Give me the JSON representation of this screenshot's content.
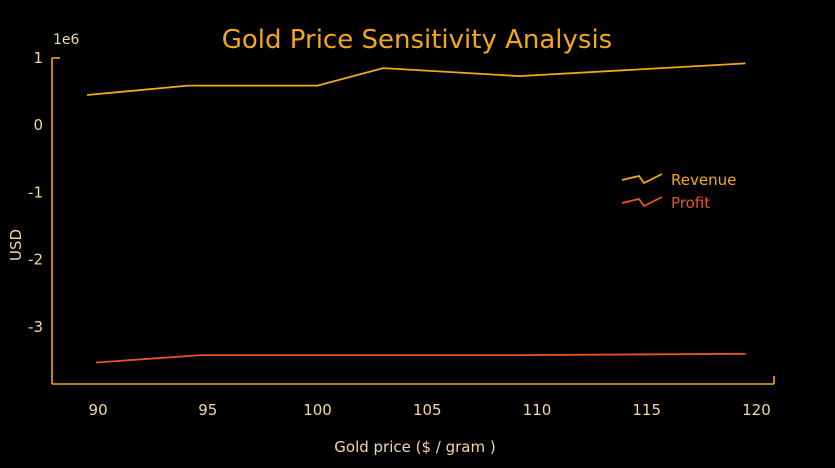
{
  "chart_data": {
    "type": "line",
    "title": "Gold Price Sensitivity Analysis",
    "xlabel": "Gold price ($ / gram )",
    "ylabel": "USD",
    "y_exponent_label": "1e6",
    "xlim": [
      87.9,
      120.8
    ],
    "ylim": [
      -3.85,
      1.0
    ],
    "x_ticks": [
      90,
      95,
      100,
      105,
      110,
      115,
      120
    ],
    "y_ticks": [
      1,
      0,
      -1,
      -2,
      -3
    ],
    "legend_position": "right",
    "grid": false,
    "series": [
      {
        "name": "Revenue",
        "color": "#f2a71b",
        "points": [
          [
            89.5,
            0.45
          ],
          [
            94.1,
            0.59
          ],
          [
            100.0,
            0.59
          ],
          [
            103.0,
            0.85
          ],
          [
            109.2,
            0.73
          ],
          [
            119.5,
            0.92
          ]
        ]
      },
      {
        "name": "Profit",
        "color": "#e8551f",
        "points": [
          [
            89.9,
            -3.53
          ],
          [
            94.7,
            -3.42
          ],
          [
            100.0,
            -3.42
          ],
          [
            109.2,
            -3.42
          ],
          [
            119.5,
            -3.4
          ]
        ]
      }
    ]
  }
}
